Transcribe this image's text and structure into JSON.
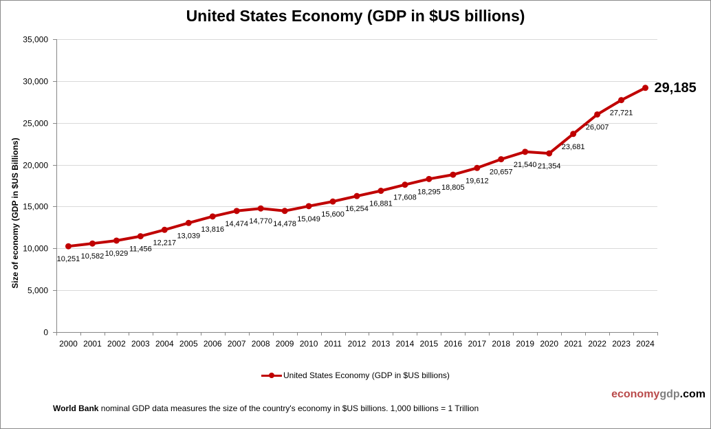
{
  "chart_data": {
    "type": "line",
    "title": "United States Economy (GDP in $US billions)",
    "xlabel": "",
    "ylabel": "Size of economy (GDP in $US Billions)",
    "ylim": [
      0,
      35000
    ],
    "yticks": [
      0,
      5000,
      10000,
      15000,
      20000,
      25000,
      30000,
      35000
    ],
    "ytick_labels": [
      "0",
      "5,000",
      "10,000",
      "15,000",
      "20,000",
      "25,000",
      "30,000",
      "35,000"
    ],
    "grid": true,
    "legend_position": "bottom-center",
    "categories": [
      "2000",
      "2001",
      "2002",
      "2003",
      "2004",
      "2005",
      "2006",
      "2007",
      "2008",
      "2009",
      "2010",
      "2011",
      "2012",
      "2013",
      "2014",
      "2015",
      "2016",
      "2017",
      "2018",
      "2019",
      "2020",
      "2021",
      "2022",
      "2023",
      "2024"
    ],
    "series": [
      {
        "name": "United States Economy (GDP in $US billions)",
        "color": "#c00000",
        "values": [
          10251,
          10582,
          10929,
          11456,
          12217,
          13039,
          13816,
          14474,
          14770,
          14478,
          15049,
          15600,
          16254,
          16881,
          17608,
          18295,
          18805,
          19612,
          20657,
          21540,
          21354,
          23681,
          26007,
          27721,
          29185
        ],
        "value_labels": [
          "10,251",
          "10,582",
          "10,929",
          "11,456",
          "12,217",
          "13,039",
          "13,816",
          "14,474",
          "14,770",
          "14,478",
          "15,049",
          "15,600",
          "16,254",
          "16,881",
          "17,608",
          "18,295",
          "18,805",
          "19,612",
          "20,657",
          "21,540",
          "21,354",
          "23,681",
          "26,007",
          "27,721",
          "29,185"
        ]
      }
    ],
    "annotation": "29,185"
  },
  "legend": {
    "label": "United States Economy (GDP in $US billions)"
  },
  "brand": {
    "part1": "economy",
    "part2": "gdp",
    "part3": ".com"
  },
  "footnote": {
    "bold": "World Bank",
    "text": " nominal GDP data  measures the size of the country's economy in $US billions. 1,000 billions = 1 Trillion"
  },
  "colors": {
    "series": "#c00000",
    "grid": "#d9d9d9",
    "axis": "#868686",
    "brand_red": "#b94a4a",
    "brand_gray": "#7f7f7f"
  }
}
